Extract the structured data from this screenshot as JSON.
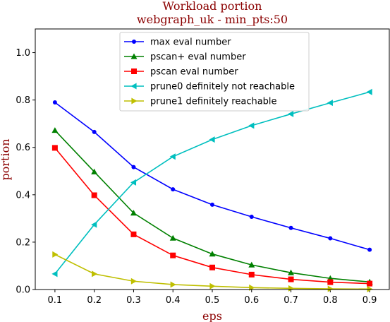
{
  "chart_data": {
    "type": "line",
    "title": "Workload portion",
    "subtitle": "webgraph_uk - min_pts:50",
    "xlabel": "eps",
    "ylabel": "portion",
    "x": [
      0.1,
      0.2,
      0.3,
      0.4,
      0.5,
      0.6,
      0.7,
      0.8,
      0.9
    ],
    "xlim": [
      0.05,
      0.95
    ],
    "ylim": [
      0,
      1.1
    ],
    "xticks": [
      "0.1",
      "0.2",
      "0.3",
      "0.4",
      "0.5",
      "0.6",
      "0.7",
      "0.8",
      "0.9"
    ],
    "yticks": [
      "0.0",
      "0.2",
      "0.4",
      "0.6",
      "0.8",
      "1.0"
    ],
    "grid": false,
    "legend_position": "top-center",
    "series": [
      {
        "name": "max eval number",
        "color": "#0000ff",
        "marker": "dot",
        "values": [
          0.79,
          0.665,
          0.517,
          0.423,
          0.358,
          0.307,
          0.26,
          0.216,
          0.168
        ]
      },
      {
        "name": "pscan+ eval number",
        "color": "#008000",
        "marker": "triangle-up",
        "values": [
          0.672,
          0.497,
          0.323,
          0.217,
          0.15,
          0.104,
          0.071,
          0.047,
          0.032
        ]
      },
      {
        "name": "pscan eval number",
        "color": "#ff0000",
        "marker": "square",
        "values": [
          0.598,
          0.398,
          0.233,
          0.144,
          0.093,
          0.063,
          0.043,
          0.031,
          0.025
        ]
      },
      {
        "name": "prune0 definitely not reachable",
        "color": "#00bfbf",
        "marker": "triangle-left",
        "values": [
          0.066,
          0.274,
          0.452,
          0.561,
          0.633,
          0.692,
          0.741,
          0.788,
          0.834
        ]
      },
      {
        "name": "prune1 definitely reachable",
        "color": "#bfbf00",
        "marker": "triangle-right",
        "values": [
          0.148,
          0.066,
          0.035,
          0.021,
          0.014,
          0.008,
          0.005,
          0.003,
          0.002
        ]
      }
    ]
  }
}
